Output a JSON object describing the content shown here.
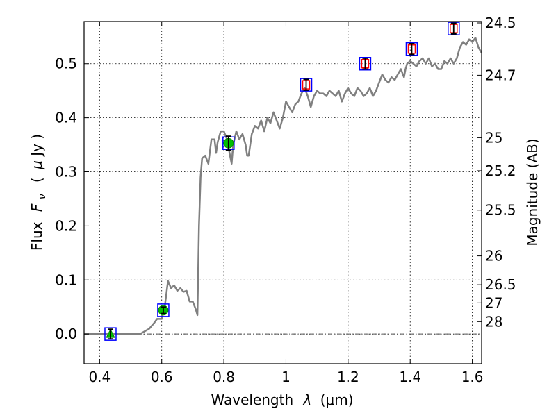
{
  "chart_data": {
    "type": "line",
    "xlabel_text": "Wavelength",
    "xlabel_math": "λ",
    "xlabel_unit": "(μm)",
    "ylabel_text": "Flux",
    "ylabel_math_main": "F",
    "ylabel_math_sub": "ν",
    "ylabel_unit_open": "(",
    "ylabel_unit_mu": "μ",
    "ylabel_unit_rest": "Jy )",
    "ylabel_right": "Magnitude (AB)",
    "xlim": [
      0.35,
      1.63
    ],
    "ylim": [
      -0.055,
      0.578
    ],
    "grid": true,
    "x_ticks": [
      {
        "value": 0.4,
        "label": "0.4"
      },
      {
        "value": 0.6,
        "label": "0.6"
      },
      {
        "value": 0.8,
        "label": "0.8"
      },
      {
        "value": 1.0,
        "label": "1"
      },
      {
        "value": 1.2,
        "label": "1.2"
      },
      {
        "value": 1.4,
        "label": "1.4"
      },
      {
        "value": 1.6,
        "label": "1.6"
      }
    ],
    "y_ticks": [
      {
        "value": 0.0,
        "label": "0.0"
      },
      {
        "value": 0.1,
        "label": "0.1"
      },
      {
        "value": 0.2,
        "label": "0.2"
      },
      {
        "value": 0.3,
        "label": "0.3"
      },
      {
        "value": 0.4,
        "label": "0.4"
      },
      {
        "value": 0.5,
        "label": "0.5"
      }
    ],
    "mag_ticks": [
      {
        "label": "24.5",
        "mag": 24.5
      },
      {
        "label": "24.7",
        "mag": 24.7
      },
      {
        "label": "25",
        "mag": 25.0
      },
      {
        "label": "25.2",
        "mag": 25.2
      },
      {
        "label": "25.5",
        "mag": 25.5
      },
      {
        "label": "26",
        "mag": 26.0
      },
      {
        "label": "26.5",
        "mag": 26.5
      },
      {
        "label": "27",
        "mag": 27.0
      },
      {
        "label": "28",
        "mag": 28.0
      }
    ],
    "zero_line": {
      "y": 0.0,
      "color": "#555555"
    },
    "series": [
      {
        "kind": "line",
        "color": "#808080",
        "x": [
          0.35,
          0.53,
          0.56,
          0.575,
          0.585,
          0.6,
          0.61,
          0.62,
          0.63,
          0.64,
          0.65,
          0.66,
          0.67,
          0.68,
          0.69,
          0.7,
          0.71,
          0.715,
          0.72,
          0.725,
          0.73,
          0.74,
          0.75,
          0.76,
          0.77,
          0.775,
          0.78,
          0.79,
          0.8,
          0.81,
          0.82,
          0.825,
          0.83,
          0.84,
          0.85,
          0.86,
          0.87,
          0.875,
          0.88,
          0.89,
          0.9,
          0.91,
          0.92,
          0.93,
          0.94,
          0.95,
          0.96,
          0.97,
          0.98,
          0.99,
          1.0,
          1.01,
          1.02,
          1.03,
          1.04,
          1.05,
          1.06,
          1.07,
          1.08,
          1.09,
          1.1,
          1.11,
          1.12,
          1.13,
          1.14,
          1.15,
          1.16,
          1.17,
          1.18,
          1.19,
          1.2,
          1.21,
          1.22,
          1.23,
          1.24,
          1.25,
          1.26,
          1.27,
          1.28,
          1.29,
          1.3,
          1.31,
          1.32,
          1.33,
          1.34,
          1.35,
          1.36,
          1.37,
          1.38,
          1.385,
          1.39,
          1.4,
          1.41,
          1.42,
          1.43,
          1.44,
          1.45,
          1.46,
          1.47,
          1.48,
          1.49,
          1.5,
          1.51,
          1.52,
          1.53,
          1.54,
          1.55,
          1.56,
          1.57,
          1.58,
          1.59,
          1.6,
          1.61,
          1.62,
          1.63
        ],
        "y": [
          0.0,
          0.0,
          0.01,
          0.02,
          0.028,
          0.028,
          0.052,
          0.098,
          0.085,
          0.09,
          0.08,
          0.085,
          0.078,
          0.08,
          0.06,
          0.06,
          0.045,
          0.035,
          0.2,
          0.29,
          0.325,
          0.33,
          0.315,
          0.36,
          0.36,
          0.335,
          0.355,
          0.375,
          0.375,
          0.36,
          0.33,
          0.315,
          0.35,
          0.375,
          0.36,
          0.37,
          0.35,
          0.33,
          0.33,
          0.37,
          0.385,
          0.38,
          0.395,
          0.375,
          0.4,
          0.39,
          0.41,
          0.395,
          0.38,
          0.4,
          0.43,
          0.42,
          0.41,
          0.425,
          0.43,
          0.445,
          0.455,
          0.44,
          0.42,
          0.44,
          0.45,
          0.445,
          0.445,
          0.44,
          0.45,
          0.445,
          0.44,
          0.45,
          0.43,
          0.445,
          0.455,
          0.445,
          0.44,
          0.455,
          0.45,
          0.44,
          0.445,
          0.455,
          0.44,
          0.45,
          0.465,
          0.48,
          0.47,
          0.465,
          0.475,
          0.47,
          0.48,
          0.49,
          0.475,
          0.49,
          0.5,
          0.505,
          0.5,
          0.495,
          0.505,
          0.51,
          0.5,
          0.51,
          0.495,
          0.5,
          0.49,
          0.49,
          0.505,
          0.5,
          0.51,
          0.5,
          0.51,
          0.53,
          0.54,
          0.535,
          0.545,
          0.54,
          0.548,
          0.53,
          0.52
        ]
      },
      {
        "kind": "square_outer",
        "color": "#0000ff",
        "x": [
          0.435,
          0.605,
          0.815,
          1.065,
          1.255,
          1.405,
          1.54
        ],
        "y": [
          0.0,
          0.044,
          0.353,
          0.461,
          0.5,
          0.527,
          0.565
        ]
      },
      {
        "kind": "square_inner",
        "color": "#ff0000",
        "x": [
          1.065,
          1.255,
          1.405,
          1.54
        ],
        "y": [
          0.461,
          0.5,
          0.527,
          0.565
        ]
      },
      {
        "kind": "circle",
        "color": "#00bf00",
        "x": [
          0.605,
          0.815
        ],
        "y": [
          0.044,
          0.353
        ]
      },
      {
        "kind": "triangle",
        "color": "#00bf00",
        "x": [
          0.435
        ],
        "y": [
          0.0
        ]
      },
      {
        "kind": "errorbar",
        "color": "#000000",
        "x": [
          0.435,
          0.605,
          0.815,
          1.065,
          1.255,
          1.405,
          1.54
        ],
        "y": [
          0.0,
          0.044,
          0.353,
          0.461,
          0.5,
          0.527,
          0.565
        ],
        "err": [
          0.009,
          0.006,
          0.013,
          0.01,
          0.01,
          0.01,
          0.01
        ]
      }
    ]
  }
}
